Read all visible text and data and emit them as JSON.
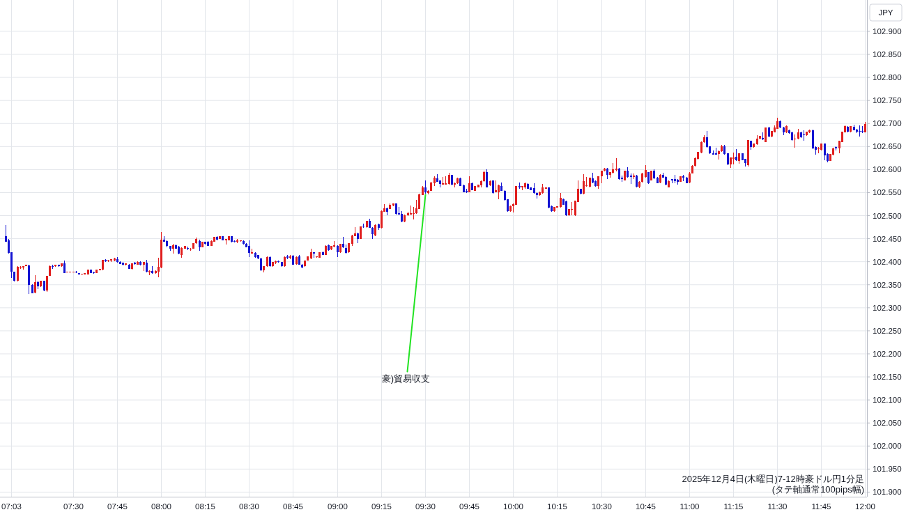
{
  "chart_data": {
    "type": "candlestick",
    "categories": [
      null,
      null,
      "07:03",
      null,
      null,
      null,
      null,
      null,
      null,
      null,
      null,
      null,
      null,
      null,
      null,
      null,
      null,
      null,
      null,
      null,
      null,
      null,
      null,
      "07:30",
      null,
      null,
      null,
      null,
      null,
      null,
      null,
      null,
      null,
      null,
      null,
      null,
      null,
      null,
      "07:45",
      null,
      null,
      null,
      null,
      null,
      null,
      null,
      null,
      null,
      null,
      null,
      null,
      null,
      null,
      "08:00",
      null,
      null,
      null,
      null,
      null,
      null,
      null,
      null,
      null,
      null,
      null,
      null,
      null,
      null,
      "08:15",
      null,
      null,
      null,
      null,
      null,
      null,
      null,
      null,
      null,
      null,
      null,
      null,
      null,
      null,
      "08:30",
      null,
      null,
      null,
      null,
      null,
      null,
      null,
      null,
      null,
      null,
      null,
      null,
      null,
      null,
      "08:45",
      null,
      null,
      null,
      null,
      null,
      null,
      null,
      null,
      null,
      null,
      null,
      null,
      null,
      null,
      "09:00",
      null,
      null,
      null,
      null,
      null,
      null,
      null,
      null,
      null,
      null,
      null,
      null,
      null,
      null,
      "09:15",
      null,
      null,
      null,
      null,
      null,
      null,
      null,
      null,
      null,
      null,
      null,
      null,
      null,
      null,
      "09:30",
      null,
      null,
      null,
      null,
      null,
      null,
      null,
      null,
      null,
      null,
      null,
      null,
      null,
      null,
      "09:45",
      null,
      null,
      null,
      null,
      null,
      null,
      null,
      null,
      null,
      null,
      null,
      null,
      null,
      null,
      "10:00",
      null,
      null,
      null,
      null,
      null,
      null,
      null,
      null,
      null,
      null,
      null,
      null,
      null,
      null,
      "10:15",
      null,
      null,
      null,
      null,
      null,
      null,
      null,
      null,
      null,
      null,
      null,
      null,
      null,
      null,
      "10:30",
      null,
      null,
      null,
      null,
      null,
      null,
      null,
      null,
      null,
      null,
      null,
      null,
      null,
      null,
      "10:45",
      null,
      null,
      null,
      null,
      null,
      null,
      null,
      null,
      null,
      null,
      null,
      null,
      null,
      null,
      "11:00",
      null,
      null,
      null,
      null,
      null,
      null,
      null,
      null,
      null,
      null,
      null,
      null,
      null,
      null,
      "11:15",
      null,
      null,
      null,
      null,
      null,
      null,
      null,
      null,
      null,
      null,
      null,
      null,
      null,
      null,
      "11:30",
      null,
      null,
      null,
      null,
      null,
      null,
      null,
      null,
      null,
      null,
      null,
      null,
      null,
      null,
      "11:45",
      null,
      null,
      null,
      null,
      null,
      null,
      null,
      null,
      null,
      null,
      null,
      null,
      null,
      null,
      "12:00"
    ],
    "ohlc": [
      [
        102.456,
        102.479,
        102.444,
        102.444
      ],
      [
        102.446,
        102.449,
        102.418,
        102.419
      ],
      [
        102.42,
        102.421,
        102.365,
        102.378
      ],
      [
        102.378,
        102.378,
        102.357,
        102.359
      ],
      [
        102.359,
        102.39,
        102.357,
        102.389
      ],
      [
        102.387,
        102.39,
        102.385,
        102.389
      ],
      [
        102.388,
        102.391,
        102.383,
        102.391
      ],
      [
        102.391,
        102.393,
        102.39,
        102.393
      ],
      [
        102.392,
        102.393,
        102.33,
        102.349
      ],
      [
        102.35,
        102.351,
        102.331,
        102.332
      ],
      [
        102.333,
        102.371,
        102.332,
        102.355
      ],
      [
        102.355,
        102.358,
        102.34,
        102.346
      ],
      [
        102.346,
        102.359,
        102.345,
        102.358
      ],
      [
        102.358,
        102.359,
        102.336,
        102.337
      ],
      [
        102.337,
        102.37,
        102.335,
        102.37
      ],
      [
        102.37,
        102.392,
        102.369,
        102.391
      ],
      [
        102.391,
        102.393,
        102.384,
        102.39
      ],
      [
        102.39,
        102.394,
        102.389,
        102.393
      ],
      [
        102.393,
        102.394,
        102.389,
        102.39
      ],
      [
        102.39,
        102.397,
        102.389,
        102.396
      ],
      [
        102.396,
        102.403,
        102.375,
        102.376
      ],
      [
        102.377,
        102.378,
        102.377,
        102.378
      ],
      [
        102.377,
        102.378,
        102.377,
        102.378
      ],
      [
        102.378,
        102.379,
        102.377,
        102.379
      ],
      [
        102.379,
        102.38,
        102.376,
        102.377
      ],
      [
        102.376,
        102.376,
        102.372,
        102.373
      ],
      [
        102.373,
        102.374,
        102.372,
        102.374
      ],
      [
        102.373,
        102.375,
        102.372,
        102.375
      ],
      [
        102.373,
        102.383,
        102.372,
        102.383
      ],
      [
        102.383,
        102.383,
        102.376,
        102.376
      ],
      [
        102.377,
        102.378,
        102.374,
        102.375
      ],
      [
        102.375,
        102.383,
        102.375,
        102.383
      ],
      [
        102.382,
        102.384,
        102.381,
        102.384
      ],
      [
        102.383,
        102.404,
        102.382,
        102.404
      ],
      [
        102.404,
        102.405,
        102.399,
        102.401
      ],
      [
        102.402,
        102.404,
        102.4,
        102.404
      ],
      [
        102.402,
        102.406,
        102.4,
        102.405
      ],
      [
        102.402,
        102.408,
        102.401,
        102.407
      ],
      [
        102.406,
        102.41,
        102.398,
        102.4
      ],
      [
        102.4,
        102.401,
        102.395,
        102.395
      ],
      [
        102.398,
        102.398,
        102.392,
        102.393
      ],
      [
        102.393,
        102.397,
        102.392,
        102.397
      ],
      [
        102.394,
        102.395,
        102.384,
        102.384
      ],
      [
        102.384,
        102.397,
        102.383,
        102.397
      ],
      [
        102.398,
        102.4,
        102.394,
        102.395
      ],
      [
        102.394,
        102.401,
        102.394,
        102.4
      ],
      [
        102.4,
        102.401,
        102.392,
        102.393
      ],
      [
        102.393,
        102.399,
        102.38,
        102.399
      ],
      [
        102.398,
        102.404,
        102.377,
        102.378
      ],
      [
        102.377,
        102.381,
        102.371,
        102.38
      ],
      [
        102.38,
        102.39,
        102.374,
        102.375
      ],
      [
        102.375,
        102.381,
        102.374,
        102.38
      ],
      [
        102.379,
        102.409,
        102.366,
        102.389
      ],
      [
        102.388,
        102.465,
        102.386,
        102.448
      ],
      [
        102.448,
        102.455,
        102.443,
        102.444
      ],
      [
        102.445,
        102.446,
        102.432,
        102.434
      ],
      [
        102.434,
        102.435,
        102.423,
        102.428
      ],
      [
        102.428,
        102.439,
        102.418,
        102.436
      ],
      [
        102.436,
        102.437,
        102.428,
        102.429
      ],
      [
        102.433,
        102.434,
        102.416,
        102.417
      ],
      [
        102.415,
        102.431,
        102.409,
        102.43
      ],
      [
        102.429,
        102.434,
        102.428,
        102.434
      ],
      [
        102.43,
        102.433,
        102.425,
        102.428
      ],
      [
        102.428,
        102.43,
        102.423,
        102.429
      ],
      [
        102.429,
        102.44,
        102.428,
        102.44
      ],
      [
        102.44,
        102.453,
        102.439,
        102.45
      ],
      [
        102.445,
        102.448,
        102.423,
        102.432
      ],
      [
        102.432,
        102.443,
        102.431,
        102.443
      ],
      [
        102.443,
        102.444,
        102.438,
        102.439
      ],
      [
        102.444,
        102.445,
        102.434,
        102.435
      ],
      [
        102.435,
        102.446,
        102.434,
        102.445
      ],
      [
        102.444,
        102.454,
        102.443,
        102.454
      ],
      [
        102.454,
        102.455,
        102.447,
        102.448
      ],
      [
        102.45,
        102.456,
        102.449,
        102.455
      ],
      [
        102.455,
        102.456,
        102.446,
        102.447
      ],
      [
        102.447,
        102.45,
        102.438,
        102.449
      ],
      [
        102.447,
        102.456,
        102.446,
        102.455
      ],
      [
        102.455,
        102.456,
        102.442,
        102.443
      ],
      [
        102.445,
        102.446,
        102.442,
        102.443
      ],
      [
        102.444,
        102.449,
        102.441,
        102.446
      ],
      [
        102.445,
        102.447,
        102.444,
        102.446
      ],
      [
        102.445,
        102.446,
        102.438,
        102.439
      ],
      [
        102.439,
        102.44,
        102.431,
        102.432
      ],
      [
        102.435,
        102.447,
        102.41,
        102.419
      ],
      [
        102.418,
        102.428,
        102.417,
        102.42
      ],
      [
        102.419,
        102.42,
        102.409,
        102.41
      ],
      [
        102.414,
        102.415,
        102.406,
        102.407
      ],
      [
        102.407,
        102.408,
        102.38,
        102.382
      ],
      [
        102.381,
        102.391,
        102.377,
        102.39
      ],
      [
        102.39,
        102.411,
        102.389,
        102.41
      ],
      [
        102.41,
        102.411,
        102.389,
        102.39
      ],
      [
        102.39,
        102.399,
        102.389,
        102.399
      ],
      [
        102.398,
        102.403,
        102.395,
        102.401
      ],
      [
        102.401,
        102.402,
        102.398,
        102.399
      ],
      [
        102.399,
        102.4,
        102.389,
        102.39
      ],
      [
        102.39,
        102.411,
        102.389,
        102.41
      ],
      [
        102.411,
        102.414,
        102.406,
        102.408
      ],
      [
        102.408,
        102.415,
        102.406,
        102.412
      ],
      [
        102.413,
        102.414,
        102.393,
        102.394
      ],
      [
        102.395,
        102.411,
        102.394,
        102.41
      ],
      [
        102.412,
        102.415,
        102.393,
        102.394
      ],
      [
        102.394,
        102.395,
        102.386,
        102.388
      ],
      [
        102.39,
        102.403,
        102.389,
        102.403
      ],
      [
        102.403,
        102.411,
        102.402,
        102.411
      ],
      [
        102.407,
        102.429,
        102.406,
        102.42
      ],
      [
        102.42,
        102.421,
        102.408,
        102.417
      ],
      [
        102.41,
        102.412,
        102.409,
        102.412
      ],
      [
        102.409,
        102.421,
        102.408,
        102.421
      ],
      [
        102.421,
        102.422,
        102.414,
        102.415
      ],
      [
        102.415,
        102.436,
        102.414,
        102.435
      ],
      [
        102.436,
        102.437,
        102.424,
        102.425
      ],
      [
        102.426,
        102.435,
        102.425,
        102.435
      ],
      [
        102.433,
        102.445,
        102.432,
        102.436
      ],
      [
        102.435,
        102.436,
        102.41,
        102.421
      ],
      [
        102.42,
        102.439,
        102.419,
        102.439
      ],
      [
        102.439,
        102.454,
        102.43,
        102.431
      ],
      [
        102.43,
        102.438,
        102.418,
        102.419
      ],
      [
        102.42,
        102.44,
        102.419,
        102.44
      ],
      [
        102.439,
        102.458,
        102.434,
        102.457
      ],
      [
        102.456,
        102.475,
        102.455,
        102.462
      ],
      [
        102.462,
        102.463,
        102.441,
        102.45
      ],
      [
        102.45,
        102.477,
        102.449,
        102.476
      ],
      [
        102.478,
        102.483,
        102.473,
        102.476
      ],
      [
        102.475,
        102.488,
        102.474,
        102.488
      ],
      [
        102.489,
        102.493,
        102.473,
        102.474
      ],
      [
        102.474,
        102.475,
        102.449,
        102.46
      ],
      [
        102.457,
        102.481,
        102.456,
        102.48
      ],
      [
        102.481,
        102.482,
        102.469,
        102.473
      ],
      [
        102.473,
        102.511,
        102.472,
        102.51
      ],
      [
        102.509,
        102.525,
        102.508,
        102.516
      ],
      [
        102.516,
        102.517,
        102.501,
        102.509
      ],
      [
        102.515,
        102.527,
        102.514,
        102.524
      ],
      [
        102.522,
        102.527,
        102.521,
        102.526
      ],
      [
        102.526,
        102.527,
        102.503,
        102.504
      ],
      [
        102.506,
        102.519,
        102.502,
        102.503
      ],
      [
        102.504,
        102.51,
        102.486,
        102.487
      ],
      [
        102.487,
        102.502,
        102.486,
        102.501
      ],
      [
        102.501,
        102.509,
        102.5,
        102.505
      ],
      [
        102.503,
        102.522,
        102.502,
        102.506
      ],
      [
        102.505,
        102.519,
        102.491,
        102.506
      ],
      [
        102.505,
        102.534,
        102.504,
        102.516
      ],
      [
        102.515,
        102.547,
        102.514,
        102.546
      ],
      [
        102.545,
        102.565,
        102.544,
        102.561
      ],
      [
        102.561,
        102.576,
        102.548,
        102.55
      ],
      [
        102.549,
        102.555,
        102.546,
        102.554
      ],
      [
        102.554,
        102.573,
        102.553,
        102.572
      ],
      [
        102.571,
        102.585,
        102.565,
        102.582
      ],
      [
        102.581,
        102.59,
        102.573,
        102.574
      ],
      [
        102.576,
        102.577,
        102.561,
        102.569
      ],
      [
        102.568,
        102.584,
        102.567,
        102.571
      ],
      [
        102.568,
        102.586,
        102.567,
        102.57
      ],
      [
        102.569,
        102.593,
        102.568,
        102.588
      ],
      [
        102.588,
        102.589,
        102.566,
        102.567
      ],
      [
        102.567,
        102.572,
        102.562,
        102.571
      ],
      [
        102.57,
        102.582,
        102.569,
        102.581
      ],
      [
        102.581,
        102.582,
        102.564,
        102.565
      ],
      [
        102.566,
        102.567,
        102.55,
        102.551
      ],
      [
        102.554,
        102.559,
        102.549,
        102.55
      ],
      [
        102.551,
        102.586,
        102.55,
        102.571
      ],
      [
        102.571,
        102.572,
        102.555,
        102.556
      ],
      [
        102.554,
        102.564,
        102.553,
        102.564
      ],
      [
        102.562,
        102.568,
        102.561,
        102.568
      ],
      [
        102.566,
        102.576,
        102.561,
        102.575
      ],
      [
        102.575,
        102.597,
        102.574,
        102.595
      ],
      [
        102.594,
        102.6,
        102.561,
        102.562
      ],
      [
        102.566,
        102.576,
        102.565,
        102.575
      ],
      [
        102.576,
        102.577,
        102.548,
        102.549
      ],
      [
        102.551,
        102.576,
        102.55,
        102.555
      ],
      [
        102.551,
        102.567,
        102.536,
        102.566
      ],
      [
        102.565,
        102.572,
        102.553,
        102.554
      ],
      [
        102.554,
        102.555,
        102.533,
        102.534
      ],
      [
        102.535,
        102.536,
        102.509,
        102.51
      ],
      [
        102.51,
        102.522,
        102.509,
        102.521
      ],
      [
        102.52,
        102.526,
        102.507,
        102.525
      ],
      [
        102.524,
        102.565,
        102.523,
        102.565
      ],
      [
        102.565,
        102.572,
        102.559,
        102.562
      ],
      [
        102.562,
        102.565,
        102.555,
        102.565
      ],
      [
        102.562,
        102.572,
        102.558,
        102.57
      ],
      [
        102.569,
        102.571,
        102.558,
        102.559
      ],
      [
        102.561,
        102.562,
        102.555,
        102.556
      ],
      [
        102.56,
        102.57,
        102.548,
        102.549
      ],
      [
        102.549,
        102.55,
        102.537,
        102.544
      ],
      [
        102.544,
        102.552,
        102.543,
        102.551
      ],
      [
        102.549,
        102.569,
        102.548,
        102.561
      ],
      [
        102.559,
        102.562,
        102.558,
        102.561
      ],
      [
        102.561,
        102.562,
        102.516,
        102.517
      ],
      [
        102.521,
        102.522,
        102.509,
        102.51
      ],
      [
        102.51,
        102.519,
        102.509,
        102.519
      ],
      [
        102.518,
        102.521,
        102.517,
        102.52
      ],
      [
        102.519,
        102.549,
        102.518,
        102.539
      ],
      [
        102.536,
        102.537,
        102.523,
        102.524
      ],
      [
        102.531,
        102.532,
        102.5,
        102.501
      ],
      [
        102.501,
        102.514,
        102.5,
        102.514
      ],
      [
        102.513,
        102.529,
        102.501,
        102.514
      ],
      [
        102.501,
        102.533,
        102.5,
        102.532
      ],
      [
        102.53,
        102.576,
        102.529,
        102.558
      ],
      [
        102.558,
        102.559,
        102.546,
        102.547
      ],
      [
        102.547,
        102.59,
        102.546,
        102.575
      ],
      [
        102.564,
        102.584,
        102.563,
        102.566
      ],
      [
        102.563,
        102.583,
        102.562,
        102.582
      ],
      [
        102.581,
        102.593,
        102.571,
        102.572
      ],
      [
        102.575,
        102.576,
        102.563,
        102.564
      ],
      [
        102.564,
        102.585,
        102.559,
        102.585
      ],
      [
        102.585,
        102.598,
        102.57,
        102.597
      ],
      [
        102.597,
        102.603,
        102.596,
        102.602
      ],
      [
        102.602,
        102.603,
        102.579,
        102.589
      ],
      [
        102.589,
        102.595,
        102.583,
        102.594
      ],
      [
        102.593,
        102.614,
        102.592,
        102.6
      ],
      [
        102.599,
        102.625,
        102.596,
        102.602
      ],
      [
        102.602,
        102.603,
        102.578,
        102.579
      ],
      [
        102.582,
        102.587,
        102.573,
        102.579
      ],
      [
        102.577,
        102.598,
        102.576,
        102.597
      ],
      [
        102.597,
        102.605,
        102.583,
        102.584
      ],
      [
        102.587,
        102.592,
        102.569,
        102.584
      ],
      [
        102.584,
        102.592,
        102.579,
        102.587
      ],
      [
        102.587,
        102.588,
        102.562,
        102.563
      ],
      [
        102.563,
        102.575,
        102.56,
        102.574
      ],
      [
        102.573,
        102.593,
        102.572,
        102.592
      ],
      [
        102.584,
        102.609,
        102.583,
        102.599
      ],
      [
        102.594,
        102.595,
        102.569,
        102.57
      ],
      [
        102.577,
        102.597,
        102.576,
        102.597
      ],
      [
        102.598,
        102.6,
        102.58,
        102.581
      ],
      [
        102.583,
        102.584,
        102.57,
        102.571
      ],
      [
        102.572,
        102.59,
        102.571,
        102.589
      ],
      [
        102.588,
        102.593,
        102.582,
        102.583
      ],
      [
        102.584,
        102.585,
        102.566,
        102.567
      ],
      [
        102.562,
        102.576,
        102.561,
        102.575
      ],
      [
        102.579,
        102.58,
        102.57,
        102.576
      ],
      [
        102.579,
        102.588,
        102.57,
        102.575
      ],
      [
        102.578,
        102.579,
        102.567,
        102.573
      ],
      [
        102.574,
        102.586,
        102.573,
        102.585
      ],
      [
        102.585,
        102.589,
        102.575,
        102.583
      ],
      [
        102.583,
        102.584,
        102.57,
        102.571
      ],
      [
        102.572,
        102.595,
        102.571,
        102.592
      ],
      [
        102.592,
        102.609,
        102.591,
        102.608
      ],
      [
        102.608,
        102.626,
        102.607,
        102.625
      ],
      [
        102.623,
        102.639,
        102.622,
        102.638
      ],
      [
        102.637,
        102.661,
        102.636,
        102.66
      ],
      [
        102.659,
        102.675,
        102.658,
        102.67
      ],
      [
        102.67,
        102.684,
        102.648,
        102.649
      ],
      [
        102.65,
        102.651,
        102.634,
        102.635
      ],
      [
        102.635,
        102.642,
        102.632,
        102.633
      ],
      [
        102.635,
        102.648,
        102.632,
        102.633
      ],
      [
        102.634,
        102.641,
        102.622,
        102.64
      ],
      [
        102.64,
        102.654,
        102.639,
        102.65
      ],
      [
        102.65,
        102.653,
        102.633,
        102.634
      ],
      [
        102.635,
        102.636,
        102.61,
        102.611
      ],
      [
        102.611,
        102.627,
        102.604,
        102.626
      ],
      [
        102.624,
        102.637,
        102.611,
        102.627
      ],
      [
        102.628,
        102.644,
        102.619,
        102.62
      ],
      [
        102.619,
        102.635,
        102.612,
        102.635
      ],
      [
        102.635,
        102.636,
        102.62,
        102.621
      ],
      [
        102.623,
        102.624,
        102.607,
        102.614
      ],
      [
        102.609,
        102.664,
        102.607,
        102.664
      ],
      [
        102.662,
        102.663,
        102.643,
        102.649
      ],
      [
        102.649,
        102.657,
        102.648,
        102.656
      ],
      [
        102.655,
        102.674,
        102.654,
        102.667
      ],
      [
        102.667,
        102.673,
        102.666,
        102.673
      ],
      [
        102.669,
        102.681,
        102.664,
        102.665
      ],
      [
        102.66,
        102.692,
        102.659,
        102.691
      ],
      [
        102.692,
        102.693,
        102.67,
        102.671
      ],
      [
        102.671,
        102.684,
        102.67,
        102.684
      ],
      [
        102.681,
        102.696,
        102.68,
        102.692
      ],
      [
        102.689,
        102.712,
        102.688,
        102.705
      ],
      [
        102.705,
        102.706,
        102.69,
        102.691
      ],
      [
        102.692,
        102.693,
        102.675,
        102.68
      ],
      [
        102.68,
        102.696,
        102.679,
        102.695
      ],
      [
        102.686,
        102.687,
        102.678,
        102.679
      ],
      [
        102.681,
        102.682,
        102.663,
        102.664
      ],
      [
        102.666,
        102.676,
        102.647,
        102.667
      ],
      [
        102.667,
        102.688,
        102.666,
        102.681
      ],
      [
        102.681,
        102.682,
        102.669,
        102.67
      ],
      [
        102.676,
        102.686,
        102.662,
        102.674
      ],
      [
        102.674,
        102.683,
        102.673,
        102.682
      ],
      [
        102.68,
        102.687,
        102.679,
        102.686
      ],
      [
        102.686,
        102.687,
        102.645,
        102.646
      ],
      [
        102.649,
        102.65,
        102.632,
        102.643
      ],
      [
        102.645,
        102.649,
        102.636,
        102.646
      ],
      [
        102.643,
        102.657,
        102.642,
        102.656
      ],
      [
        102.656,
        102.657,
        102.621,
        102.631
      ],
      [
        102.634,
        102.635,
        102.616,
        102.619
      ],
      [
        102.619,
        102.634,
        102.618,
        102.634
      ],
      [
        102.632,
        102.647,
        102.631,
        102.646
      ],
      [
        102.649,
        102.651,
        102.642,
        102.646
      ],
      [
        102.646,
        102.663,
        102.635,
        102.662
      ],
      [
        102.66,
        102.683,
        102.659,
        102.682
      ],
      [
        102.681,
        102.696,
        102.68,
        102.695
      ],
      [
        102.693,
        102.694,
        102.681,
        102.682
      ],
      [
        102.682,
        102.694,
        102.681,
        102.694
      ],
      [
        102.693,
        102.697,
        102.685,
        102.686
      ],
      [
        102.687,
        102.688,
        102.679,
        102.682
      ],
      [
        102.684,
        102.696,
        102.671,
        102.683
      ],
      [
        102.684,
        102.695,
        102.679,
        102.683
      ],
      [
        102.681,
        102.704,
        102.68,
        102.699
      ]
    ],
    "colors": [
      "#1414d2",
      "#1414d2",
      "#1414d2",
      "#1414d2",
      "#e01e1e",
      "#e01e1e",
      "#e01e1e",
      "#e01e1e",
      "#1414d2",
      "#1414d2",
      "#e01e1e",
      "#1414d2",
      "#e01e1e",
      "#1414d2",
      "#e01e1e",
      "#e01e1e",
      "#1414d2",
      "#e01e1e",
      "#1414d2",
      "#e01e1e",
      "#1414d2",
      "#e01e1e",
      "#e01e1e",
      "#e01e1e",
      "#1414d2",
      "#1414d2",
      "#e01e1e",
      "#e01e1e",
      "#e01e1e",
      "#1414d2",
      "#1414d2",
      "#e01e1e",
      "#e01e1e",
      "#e01e1e",
      "#1414d2",
      "#e01e1e",
      "#e01e1e",
      "#e01e1e",
      "#1414d2",
      "#1414d2",
      "#1414d2",
      "#e01e1e",
      "#1414d2",
      "#e01e1e",
      "#1414d2",
      "#e01e1e",
      "#1414d2",
      "#e01e1e",
      "#1414d2",
      "#e01e1e",
      "#1414d2",
      "#e01e1e",
      "#e01e1e",
      "#e01e1e",
      "#1414d2",
      "#1414d2",
      "#1414d2",
      "#e01e1e",
      "#1414d2",
      "#1414d2",
      "#e01e1e",
      "#e01e1e",
      "#1414d2",
      "#e01e1e",
      "#e01e1e",
      "#e01e1e",
      "#1414d2",
      "#e01e1e",
      "#1414d2",
      "#1414d2",
      "#e01e1e",
      "#e01e1e",
      "#1414d2",
      "#e01e1e",
      "#1414d2",
      "#e01e1e",
      "#e01e1e",
      "#1414d2",
      "#1414d2",
      "#e01e1e",
      "#e01e1e",
      "#1414d2",
      "#1414d2",
      "#1414d2",
      "#e01e1e",
      "#1414d2",
      "#1414d2",
      "#1414d2",
      "#e01e1e",
      "#e01e1e",
      "#1414d2",
      "#e01e1e",
      "#e01e1e",
      "#1414d2",
      "#1414d2",
      "#e01e1e",
      "#1414d2",
      "#e01e1e",
      "#1414d2",
      "#e01e1e",
      "#1414d2",
      "#1414d2",
      "#e01e1e",
      "#e01e1e",
      "#e01e1e",
      "#1414d2",
      "#e01e1e",
      "#e01e1e",
      "#1414d2",
      "#e01e1e",
      "#1414d2",
      "#e01e1e",
      "#e01e1e",
      "#1414d2",
      "#e01e1e",
      "#1414d2",
      "#1414d2",
      "#e01e1e",
      "#e01e1e",
      "#e01e1e",
      "#1414d2",
      "#e01e1e",
      "#1414d2",
      "#e01e1e",
      "#1414d2",
      "#1414d2",
      "#e01e1e",
      "#1414d2",
      "#e01e1e",
      "#e01e1e",
      "#1414d2",
      "#e01e1e",
      "#e01e1e",
      "#1414d2",
      "#1414d2",
      "#1414d2",
      "#e01e1e",
      "#e01e1e",
      "#e01e1e",
      "#e01e1e",
      "#e01e1e",
      "#e01e1e",
      "#e01e1e",
      "#1414d2",
      "#e01e1e",
      "#e01e1e",
      "#e01e1e",
      "#1414d2",
      "#1414d2",
      "#e01e1e",
      "#e01e1e",
      "#e01e1e",
      "#1414d2",
      "#e01e1e",
      "#e01e1e",
      "#1414d2",
      "#1414d2",
      "#1414d2",
      "#e01e1e",
      "#1414d2",
      "#e01e1e",
      "#e01e1e",
      "#e01e1e",
      "#e01e1e",
      "#1414d2",
      "#e01e1e",
      "#1414d2",
      "#e01e1e",
      "#e01e1e",
      "#1414d2",
      "#1414d2",
      "#1414d2",
      "#e01e1e",
      "#e01e1e",
      "#e01e1e",
      "#1414d2",
      "#e01e1e",
      "#e01e1e",
      "#1414d2",
      "#1414d2",
      "#1414d2",
      "#1414d2",
      "#e01e1e",
      "#e01e1e",
      "#e01e1e",
      "#1414d2",
      "#1414d2",
      "#e01e1e",
      "#e01e1e",
      "#e01e1e",
      "#1414d2",
      "#1414d2",
      "#e01e1e",
      "#e01e1e",
      "#e01e1e",
      "#e01e1e",
      "#1414d2",
      "#e01e1e",
      "#e01e1e",
      "#e01e1e",
      "#1414d2",
      "#1414d2",
      "#e01e1e",
      "#e01e1e",
      "#e01e1e",
      "#1414d2",
      "#e01e1e",
      "#e01e1e",
      "#e01e1e",
      "#1414d2",
      "#1414d2",
      "#e01e1e",
      "#1414d2",
      "#1414d2",
      "#e01e1e",
      "#1414d2",
      "#e01e1e",
      "#e01e1e",
      "#e01e1e",
      "#1414d2",
      "#e01e1e",
      "#1414d2",
      "#1414d2",
      "#e01e1e",
      "#1414d2",
      "#1414d2",
      "#e01e1e",
      "#1414d2",
      "#1414d2",
      "#1414d2",
      "#e01e1e",
      "#1414d2",
      "#1414d2",
      "#e01e1e",
      "#e01e1e",
      "#e01e1e",
      "#e01e1e",
      "#e01e1e",
      "#e01e1e",
      "#1414d2",
      "#1414d2",
      "#1414d2",
      "#1414d2",
      "#e01e1e",
      "#e01e1e",
      "#1414d2",
      "#1414d2",
      "#e01e1e",
      "#e01e1e",
      "#1414d2",
      "#e01e1e",
      "#1414d2",
      "#1414d2",
      "#e01e1e",
      "#1414d2",
      "#e01e1e",
      "#e01e1e",
      "#e01e1e",
      "#1414d2",
      "#e01e1e",
      "#1414d2",
      "#e01e1e",
      "#e01e1e",
      "#e01e1e",
      "#1414d2",
      "#1414d2",
      "#e01e1e",
      "#1414d2",
      "#1414d2",
      "#e01e1e",
      "#e01e1e",
      "#1414d2",
      "#1414d2",
      "#e01e1e",
      "#e01e1e",
      "#1414d2",
      "#1414d2",
      "#e01e1e",
      "#e01e1e",
      "#1414d2",
      "#1414d2",
      "#e01e1e",
      "#e01e1e",
      "#1414d2",
      "#e01e1e",
      "#e01e1e",
      "#e01e1e",
      "#1414d2",
      "#e01e1e",
      "#1414d2",
      "#1414d2",
      "#1414d2",
      "#1414d2",
      "#e01e1e"
    ],
    "ylim": [
      101.89,
      102.968
    ],
    "yticks": [
      {
        "value": 101.9,
        "label": "101.900"
      },
      {
        "value": 101.95,
        "label": "101.950"
      },
      {
        "value": 102,
        "label": "102.000"
      },
      {
        "value": 102.05,
        "label": "102.050"
      },
      {
        "value": 102.1,
        "label": "102.100"
      },
      {
        "value": 102.15,
        "label": "102.150"
      },
      {
        "value": 102.2,
        "label": "102.200"
      },
      {
        "value": 102.25,
        "label": "102.250"
      },
      {
        "value": 102.3,
        "label": "102.300"
      },
      {
        "value": 102.35,
        "label": "102.350"
      },
      {
        "value": 102.4,
        "label": "102.400"
      },
      {
        "value": 102.45,
        "label": "102.450"
      },
      {
        "value": 102.5,
        "label": "102.500"
      },
      {
        "value": 102.55,
        "label": "102.550"
      },
      {
        "value": 102.6,
        "label": "102.600"
      },
      {
        "value": 102.65,
        "label": "102.650"
      },
      {
        "value": 102.7,
        "label": "102.700"
      },
      {
        "value": 102.75,
        "label": "102.750"
      },
      {
        "value": 102.8,
        "label": "102.800"
      },
      {
        "value": 102.85,
        "label": "102.850"
      },
      {
        "value": 102.9,
        "label": "102.900"
      }
    ],
    "grid": true,
    "ylabel": "JPY",
    "annotations": [
      {
        "text": "豪)貿易収支",
        "x": "09:30",
        "y": 102.55
      },
      "2025年12月4日(木曜日)7-12時豪ドル円1分足",
      "(タテ軸通常100pips幅)"
    ]
  }
}
